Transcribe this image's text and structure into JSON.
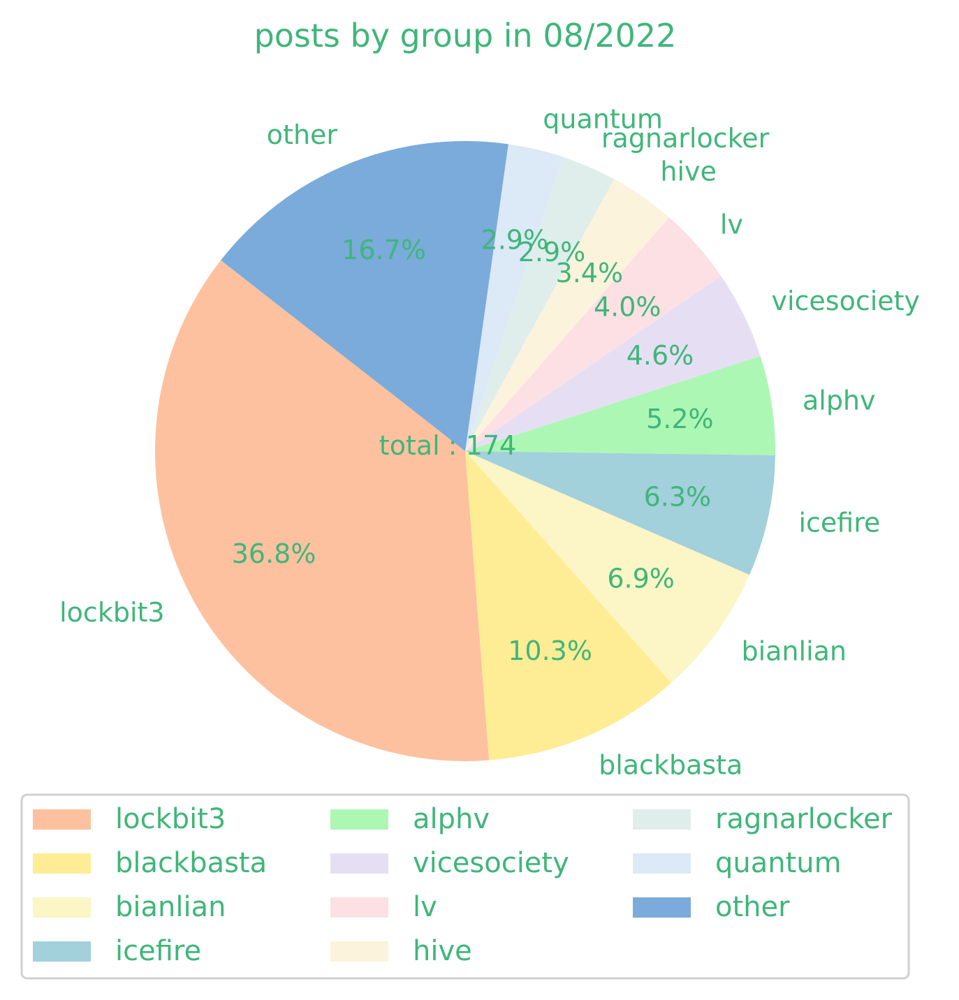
{
  "chart_data": {
    "type": "pie",
    "title": "posts by group in 08/2022",
    "center_text": "total : 174",
    "categories": [
      "lockbit3",
      "blackbasta",
      "bianlian",
      "icefire",
      "alphv",
      "vicesociety",
      "lv",
      "hive",
      "ragnarlocker",
      "quantum",
      "other"
    ],
    "values": [
      64,
      18,
      12,
      11,
      9,
      8,
      7,
      6,
      5,
      5,
      29
    ],
    "percent_labels": [
      "36.8%",
      "10.3%",
      "6.9%",
      "6.3%",
      "5.2%",
      "4.6%",
      "4.0%",
      "3.4%",
      "2.9%",
      "2.9%",
      "16.7%"
    ],
    "colors": [
      "#fdc19f",
      "#feed95",
      "#fcf5c6",
      "#a2d0db",
      "#adf7b4",
      "#e6dff4",
      "#fde0e3",
      "#fcf3dc",
      "#dfeeeb",
      "#dce9f6",
      "#7aabda"
    ],
    "text_color": "#3fb67a",
    "start_angle_deg": 142,
    "direction": "counterclockwise",
    "legend": {
      "placement": "bottom",
      "columns": 3,
      "entries": [
        "lockbit3",
        "blackbasta",
        "bianlian",
        "icefire",
        "alphv",
        "vicesociety",
        "lv",
        "hive",
        "ragnarlocker",
        "quantum",
        "other"
      ]
    }
  }
}
